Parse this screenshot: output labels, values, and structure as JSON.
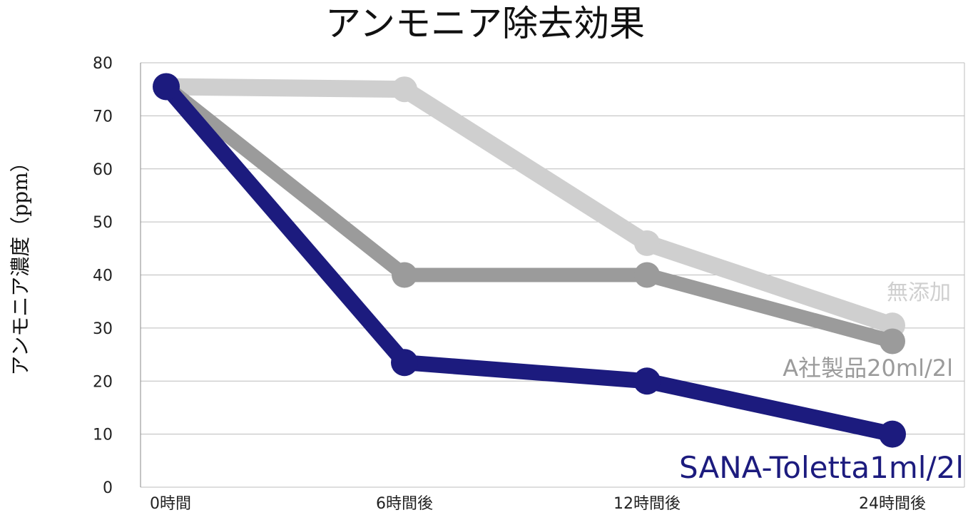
{
  "chart_data": {
    "type": "line",
    "title": "アンモニア除去効果",
    "ylabel": "アンモニア濃度（ppm）",
    "xlabel": "",
    "categories": [
      "0時間",
      "6時間後",
      "12時間後",
      "24時間後"
    ],
    "ylim": [
      0,
      80
    ],
    "yticks": [
      0,
      10,
      20,
      30,
      40,
      50,
      60,
      70,
      80
    ],
    "grid": true,
    "series": [
      {
        "name": "無添加",
        "values": [
          75.5,
          75.0,
          46.0,
          30.5
        ],
        "color": "#cfcfcf"
      },
      {
        "name": "A社製品20ml/2l",
        "values": [
          75.5,
          40.0,
          40.0,
          27.5
        ],
        "color": "#9b9b9b"
      },
      {
        "name": "SANA-Toletta1ml/2l",
        "values": [
          75.5,
          23.5,
          20.0,
          10.0
        ],
        "color": "#1c1b7e"
      }
    ]
  },
  "colors": {
    "grid": "#bcbcbc",
    "axis": "#888888"
  }
}
